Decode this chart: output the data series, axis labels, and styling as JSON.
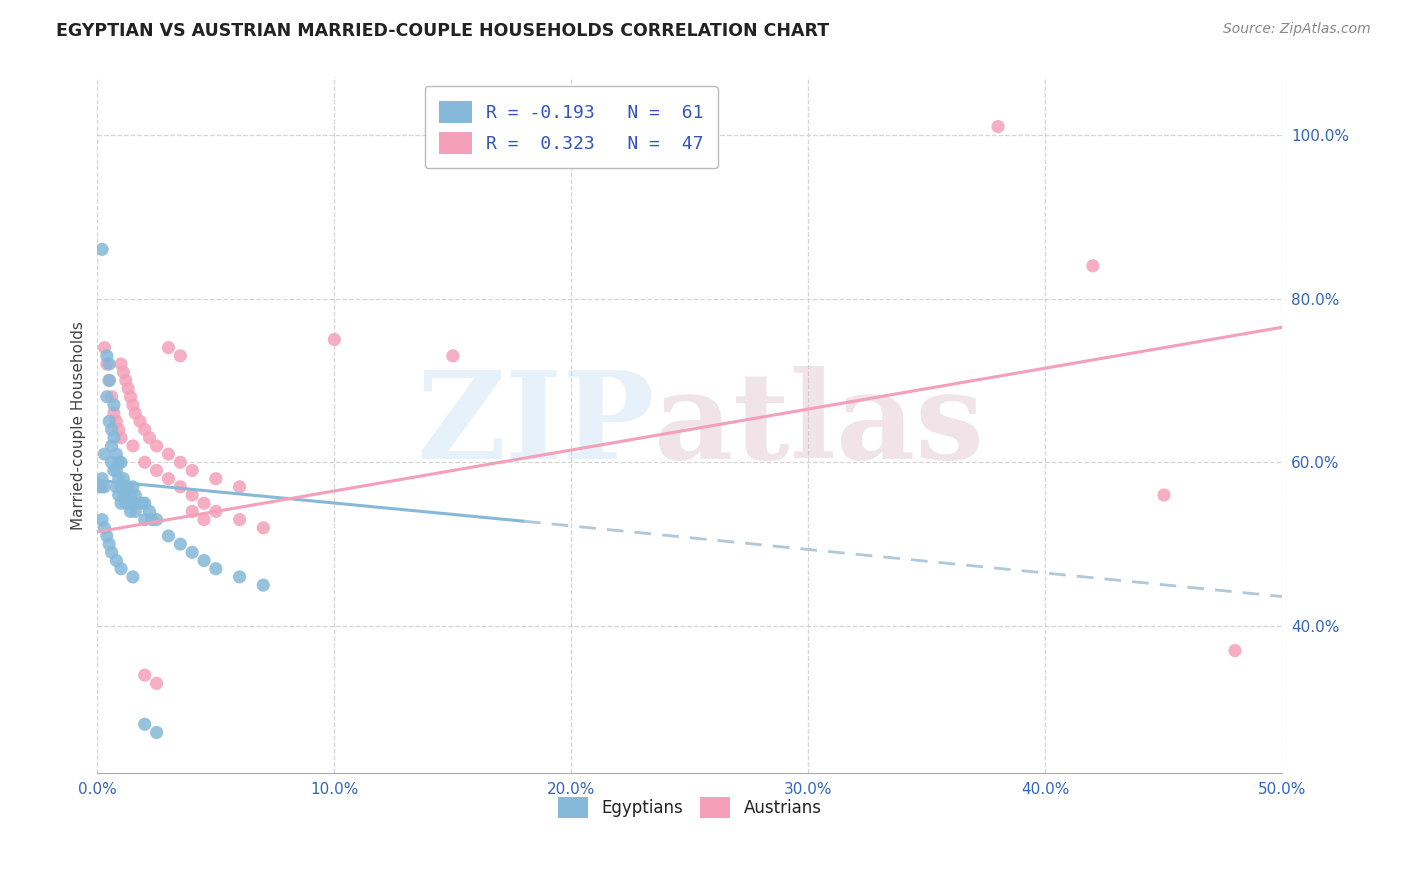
{
  "title": "EGYPTIAN VS AUSTRIAN MARRIED-COUPLE HOUSEHOLDS CORRELATION CHART",
  "source": "Source: ZipAtlas.com",
  "ylabel": "Married-couple Households",
  "xmin": 0.0,
  "xmax": 0.5,
  "ymin": 0.22,
  "ymax": 1.07,
  "watermark_zip": "ZIP",
  "watermark_atlas": "atlas",
  "egyptians_color": "#85b8d9",
  "austrians_color": "#f4a0b8",
  "egyptians_scatter": [
    [
      0.001,
      0.57
    ],
    [
      0.002,
      0.86
    ],
    [
      0.002,
      0.58
    ],
    [
      0.003,
      0.57
    ],
    [
      0.003,
      0.61
    ],
    [
      0.004,
      0.73
    ],
    [
      0.004,
      0.68
    ],
    [
      0.005,
      0.72
    ],
    [
      0.005,
      0.7
    ],
    [
      0.005,
      0.65
    ],
    [
      0.006,
      0.64
    ],
    [
      0.006,
      0.62
    ],
    [
      0.006,
      0.6
    ],
    [
      0.007,
      0.67
    ],
    [
      0.007,
      0.63
    ],
    [
      0.007,
      0.59
    ],
    [
      0.008,
      0.61
    ],
    [
      0.008,
      0.59
    ],
    [
      0.008,
      0.57
    ],
    [
      0.009,
      0.6
    ],
    [
      0.009,
      0.58
    ],
    [
      0.009,
      0.56
    ],
    [
      0.01,
      0.6
    ],
    [
      0.01,
      0.57
    ],
    [
      0.01,
      0.55
    ],
    [
      0.011,
      0.58
    ],
    [
      0.011,
      0.56
    ],
    [
      0.012,
      0.57
    ],
    [
      0.012,
      0.55
    ],
    [
      0.013,
      0.57
    ],
    [
      0.013,
      0.55
    ],
    [
      0.014,
      0.56
    ],
    [
      0.014,
      0.54
    ],
    [
      0.015,
      0.57
    ],
    [
      0.015,
      0.55
    ],
    [
      0.016,
      0.56
    ],
    [
      0.016,
      0.54
    ],
    [
      0.018,
      0.55
    ],
    [
      0.019,
      0.55
    ],
    [
      0.02,
      0.55
    ],
    [
      0.02,
      0.53
    ],
    [
      0.022,
      0.54
    ],
    [
      0.023,
      0.53
    ],
    [
      0.025,
      0.53
    ],
    [
      0.03,
      0.51
    ],
    [
      0.035,
      0.5
    ],
    [
      0.04,
      0.49
    ],
    [
      0.045,
      0.48
    ],
    [
      0.05,
      0.47
    ],
    [
      0.06,
      0.46
    ],
    [
      0.07,
      0.45
    ],
    [
      0.002,
      0.53
    ],
    [
      0.003,
      0.52
    ],
    [
      0.004,
      0.51
    ],
    [
      0.005,
      0.5
    ],
    [
      0.006,
      0.49
    ],
    [
      0.008,
      0.48
    ],
    [
      0.01,
      0.47
    ],
    [
      0.015,
      0.46
    ],
    [
      0.02,
      0.28
    ],
    [
      0.025,
      0.27
    ]
  ],
  "austrians_scatter": [
    [
      0.002,
      0.57
    ],
    [
      0.003,
      0.74
    ],
    [
      0.004,
      0.72
    ],
    [
      0.005,
      0.7
    ],
    [
      0.006,
      0.68
    ],
    [
      0.007,
      0.66
    ],
    [
      0.008,
      0.65
    ],
    [
      0.009,
      0.64
    ],
    [
      0.01,
      0.72
    ],
    [
      0.011,
      0.71
    ],
    [
      0.012,
      0.7
    ],
    [
      0.013,
      0.69
    ],
    [
      0.014,
      0.68
    ],
    [
      0.015,
      0.67
    ],
    [
      0.016,
      0.66
    ],
    [
      0.018,
      0.65
    ],
    [
      0.02,
      0.64
    ],
    [
      0.022,
      0.63
    ],
    [
      0.025,
      0.62
    ],
    [
      0.03,
      0.61
    ],
    [
      0.035,
      0.6
    ],
    [
      0.04,
      0.59
    ],
    [
      0.05,
      0.58
    ],
    [
      0.06,
      0.57
    ],
    [
      0.01,
      0.63
    ],
    [
      0.015,
      0.62
    ],
    [
      0.02,
      0.6
    ],
    [
      0.025,
      0.59
    ],
    [
      0.03,
      0.58
    ],
    [
      0.035,
      0.57
    ],
    [
      0.04,
      0.56
    ],
    [
      0.045,
      0.55
    ],
    [
      0.05,
      0.54
    ],
    [
      0.06,
      0.53
    ],
    [
      0.07,
      0.52
    ],
    [
      0.02,
      0.34
    ],
    [
      0.025,
      0.33
    ],
    [
      0.03,
      0.74
    ],
    [
      0.035,
      0.73
    ],
    [
      0.04,
      0.54
    ],
    [
      0.045,
      0.53
    ],
    [
      0.38,
      1.01
    ],
    [
      0.42,
      0.84
    ],
    [
      0.45,
      0.56
    ],
    [
      0.48,
      0.37
    ],
    [
      0.1,
      0.75
    ],
    [
      0.15,
      0.73
    ]
  ],
  "egypt_line_solid": {
    "x": [
      0.0,
      0.18
    ],
    "y": [
      0.578,
      0.528
    ]
  },
  "egypt_line_dashed": {
    "x": [
      0.18,
      0.5
    ],
    "y": [
      0.528,
      0.436
    ]
  },
  "austria_line": {
    "x": [
      0.0,
      0.5
    ],
    "y": [
      0.515,
      0.765
    ]
  },
  "grid_color": "#cccccc",
  "ytick_labels": [
    "40.0%",
    "60.0%",
    "80.0%",
    "100.0%"
  ],
  "ytick_values": [
    0.4,
    0.6,
    0.8,
    1.0
  ],
  "xtick_labels": [
    "0.0%",
    "10.0%",
    "20.0%",
    "30.0%",
    "40.0%",
    "50.0%"
  ],
  "xtick_values": [
    0.0,
    0.1,
    0.2,
    0.3,
    0.4,
    0.5
  ],
  "legend_label_blue": "R = -0.193   N =  61",
  "legend_label_pink": "R =  0.323   N =  47",
  "bottom_legend_egyptians": "Egyptians",
  "bottom_legend_austrians": "Austrians"
}
